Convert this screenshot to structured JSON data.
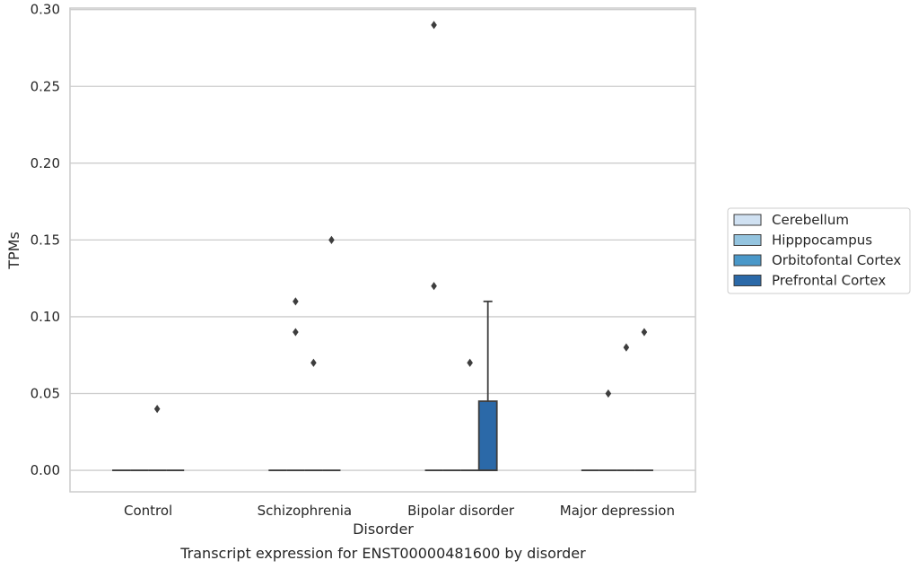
{
  "chart_data": {
    "type": "box",
    "title": "",
    "caption": "Transcript expression for ENST00000481600 by disorder",
    "xlabel": "Disorder",
    "ylabel": "TPMs",
    "ylim": [
      -0.014,
      0.301
    ],
    "yticks": [
      0.0,
      0.05,
      0.1,
      0.15,
      0.2,
      0.25,
      0.3
    ],
    "ytick_labels": [
      "0.00",
      "0.05",
      "0.10",
      "0.15",
      "0.20",
      "0.25",
      "0.30"
    ],
    "grid": "horizontal",
    "legend_position": "right",
    "categories": [
      "Control",
      "Schizophrenia",
      "Bipolar disorder",
      "Major depression"
    ],
    "series": [
      {
        "name": "Cerebellum",
        "color": "#d0e1f2",
        "boxes": [
          {
            "q1": 0,
            "median": 0,
            "q3": 0,
            "whisker_low": 0,
            "whisker_high": 0,
            "outliers": []
          },
          {
            "q1": 0,
            "median": 0,
            "q3": 0,
            "whisker_low": 0,
            "whisker_high": 0,
            "outliers": []
          },
          {
            "q1": 0,
            "median": 0,
            "q3": 0,
            "whisker_low": 0,
            "whisker_high": 0,
            "outliers": [
              0.29,
              0.12
            ]
          },
          {
            "q1": 0,
            "median": 0,
            "q3": 0,
            "whisker_low": 0,
            "whisker_high": 0,
            "outliers": []
          }
        ]
      },
      {
        "name": "Hipppocampus",
        "color": "#94c4df",
        "boxes": [
          {
            "q1": 0,
            "median": 0,
            "q3": 0,
            "whisker_low": 0,
            "whisker_high": 0,
            "outliers": []
          },
          {
            "q1": 0,
            "median": 0,
            "q3": 0,
            "whisker_low": 0,
            "whisker_high": 0,
            "outliers": [
              0.11,
              0.09
            ]
          },
          {
            "q1": 0,
            "median": 0,
            "q3": 0,
            "whisker_low": 0,
            "whisker_high": 0,
            "outliers": []
          },
          {
            "q1": 0,
            "median": 0,
            "q3": 0,
            "whisker_low": 0,
            "whisker_high": 0,
            "outliers": [
              0.05
            ]
          }
        ]
      },
      {
        "name": "Orbitofontal Cortex",
        "color": "#4a98c9",
        "boxes": [
          {
            "q1": 0,
            "median": 0,
            "q3": 0,
            "whisker_low": 0,
            "whisker_high": 0,
            "outliers": [
              0.04
            ]
          },
          {
            "q1": 0,
            "median": 0,
            "q3": 0,
            "whisker_low": 0,
            "whisker_high": 0,
            "outliers": [
              0.07
            ]
          },
          {
            "q1": 0,
            "median": 0,
            "q3": 0,
            "whisker_low": 0,
            "whisker_high": 0,
            "outliers": [
              0.07
            ]
          },
          {
            "q1": 0,
            "median": 0,
            "q3": 0,
            "whisker_low": 0,
            "whisker_high": 0,
            "outliers": [
              0.08
            ]
          }
        ]
      },
      {
        "name": "Prefrontal Cortex",
        "color": "#2b69a8",
        "boxes": [
          {
            "q1": 0,
            "median": 0,
            "q3": 0,
            "whisker_low": 0,
            "whisker_high": 0,
            "outliers": []
          },
          {
            "q1": 0,
            "median": 0,
            "q3": 0,
            "whisker_low": 0,
            "whisker_high": 0,
            "outliers": [
              0.15
            ]
          },
          {
            "q1": 0,
            "median": 0,
            "q3": 0.045,
            "whisker_low": 0,
            "whisker_high": 0.11,
            "outliers": []
          },
          {
            "q1": 0,
            "median": 0,
            "q3": 0,
            "whisker_low": 0,
            "whisker_high": 0,
            "outliers": [
              0.09
            ]
          }
        ]
      }
    ]
  }
}
